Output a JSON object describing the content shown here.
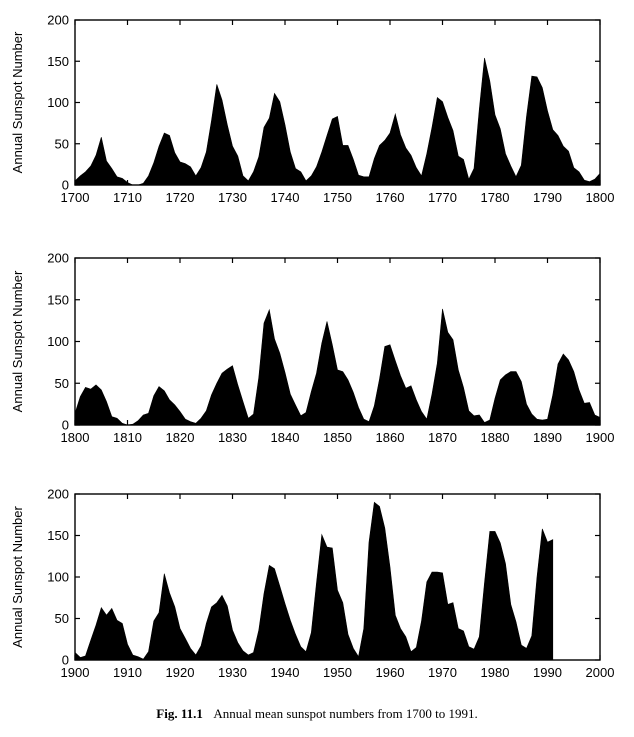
{
  "figure": {
    "caption_label": "Fig. 11.1",
    "caption_text": "Annual mean sunspot numbers from 1700 to 1991."
  },
  "chart_data": [
    {
      "type": "area",
      "title": "",
      "xlabel": "",
      "ylabel": "Annual Sunspot Number",
      "xlim": [
        1700,
        1800
      ],
      "ylim": [
        0,
        200
      ],
      "x_ticks": [
        1700,
        1710,
        1720,
        1730,
        1740,
        1750,
        1760,
        1770,
        1780,
        1790,
        1800
      ],
      "y_ticks": [
        0,
        50,
        100,
        150,
        200
      ],
      "fill_color": "#000000",
      "series": [
        {
          "x": [
            1700,
            1701,
            1702,
            1703,
            1704,
            1705,
            1706,
            1707,
            1708,
            1709,
            1710,
            1711,
            1712,
            1713,
            1714,
            1715,
            1716,
            1717,
            1718,
            1719,
            1720,
            1721,
            1722,
            1723,
            1724,
            1725,
            1726,
            1727,
            1728,
            1729,
            1730,
            1731,
            1732,
            1733,
            1734,
            1735,
            1736,
            1737,
            1738,
            1739,
            1740,
            1741,
            1742,
            1743,
            1744,
            1745,
            1746,
            1747,
            1748,
            1749,
            1750,
            1751,
            1752,
            1753,
            1754,
            1755,
            1756,
            1757,
            1758,
            1759,
            1760,
            1761,
            1762,
            1763,
            1764,
            1765,
            1766,
            1767,
            1768,
            1769,
            1770,
            1771,
            1772,
            1773,
            1774,
            1775,
            1776,
            1777,
            1778,
            1779,
            1780,
            1781,
            1782,
            1783,
            1784,
            1785,
            1786,
            1787,
            1788,
            1789,
            1790,
            1791,
            1792,
            1793,
            1794,
            1795,
            1796,
            1797,
            1798,
            1799,
            1800
          ],
          "values": [
            5,
            11,
            16,
            23,
            36,
            58,
            29,
            20,
            10,
            8,
            3,
            0,
            0,
            2,
            11,
            27,
            47,
            63,
            60,
            39,
            28,
            26,
            22,
            11,
            21,
            40,
            78,
            122,
            103,
            73,
            47,
            35,
            11,
            5,
            16,
            34,
            70,
            81,
            111,
            101,
            73,
            40,
            20,
            16,
            5,
            11,
            22,
            40,
            60,
            80,
            83,
            48,
            48,
            31,
            12,
            10,
            10,
            32,
            48,
            54,
            63,
            86,
            61,
            45,
            36,
            21,
            11,
            38,
            70,
            106,
            101,
            82,
            66,
            35,
            31,
            7,
            20,
            92,
            154,
            126,
            85,
            68,
            38,
            23,
            10,
            24,
            83,
            132,
            131,
            118,
            90,
            67,
            60,
            47,
            41,
            21,
            16,
            6,
            4,
            7,
            14
          ]
        }
      ]
    },
    {
      "type": "area",
      "title": "",
      "xlabel": "",
      "ylabel": "Annual Sunspot Number",
      "xlim": [
        1800,
        1900
      ],
      "ylim": [
        0,
        200
      ],
      "x_ticks": [
        1800,
        1810,
        1820,
        1830,
        1840,
        1850,
        1860,
        1870,
        1880,
        1890,
        1900
      ],
      "y_ticks": [
        0,
        50,
        100,
        150,
        200
      ],
      "fill_color": "#000000",
      "series": [
        {
          "x": [
            1800,
            1801,
            1802,
            1803,
            1804,
            1805,
            1806,
            1807,
            1808,
            1809,
            1810,
            1811,
            1812,
            1813,
            1814,
            1815,
            1816,
            1817,
            1818,
            1819,
            1820,
            1821,
            1822,
            1823,
            1824,
            1825,
            1826,
            1827,
            1828,
            1829,
            1830,
            1831,
            1832,
            1833,
            1834,
            1835,
            1836,
            1837,
            1838,
            1839,
            1840,
            1841,
            1842,
            1843,
            1844,
            1845,
            1846,
            1847,
            1848,
            1849,
            1850,
            1851,
            1852,
            1853,
            1854,
            1855,
            1856,
            1857,
            1858,
            1859,
            1860,
            1861,
            1862,
            1863,
            1864,
            1865,
            1866,
            1867,
            1868,
            1869,
            1870,
            1871,
            1872,
            1873,
            1874,
            1875,
            1876,
            1877,
            1878,
            1879,
            1880,
            1881,
            1882,
            1883,
            1884,
            1885,
            1886,
            1887,
            1888,
            1889,
            1890,
            1891,
            1892,
            1893,
            1894,
            1895,
            1896,
            1897,
            1898,
            1899,
            1900
          ],
          "values": [
            14,
            34,
            45,
            43,
            48,
            42,
            28,
            10,
            8,
            2,
            0,
            1,
            5,
            12,
            14,
            35,
            46,
            41,
            30,
            24,
            16,
            7,
            4,
            2,
            8,
            17,
            36,
            50,
            62,
            67,
            71,
            48,
            28,
            8,
            13,
            57,
            122,
            138,
            103,
            86,
            63,
            37,
            24,
            11,
            15,
            40,
            62,
            98,
            124,
            96,
            66,
            64,
            54,
            39,
            21,
            7,
            4,
            23,
            55,
            94,
            96,
            77,
            59,
            44,
            47,
            30,
            16,
            7,
            37,
            74,
            139,
            111,
            102,
            66,
            45,
            17,
            11,
            12,
            3,
            6,
            32,
            54,
            60,
            64,
            64,
            52,
            25,
            13,
            7,
            6,
            7,
            36,
            73,
            85,
            78,
            64,
            42,
            26,
            27,
            12,
            9
          ]
        }
      ]
    },
    {
      "type": "area",
      "title": "",
      "xlabel": "",
      "ylabel": "Annual Sunspot Number",
      "xlim": [
        1900,
        2000
      ],
      "ylim": [
        0,
        200
      ],
      "x_ticks": [
        1900,
        1910,
        1920,
        1930,
        1940,
        1950,
        1960,
        1970,
        1980,
        1990,
        2000
      ],
      "y_ticks": [
        0,
        50,
        100,
        150,
        200
      ],
      "fill_color": "#000000",
      "series": [
        {
          "x": [
            1900,
            1901,
            1902,
            1903,
            1904,
            1905,
            1906,
            1907,
            1908,
            1909,
            1910,
            1911,
            1912,
            1913,
            1914,
            1915,
            1916,
            1917,
            1918,
            1919,
            1920,
            1921,
            1922,
            1923,
            1924,
            1925,
            1926,
            1927,
            1928,
            1929,
            1930,
            1931,
            1932,
            1933,
            1934,
            1935,
            1936,
            1937,
            1938,
            1939,
            1940,
            1941,
            1942,
            1943,
            1944,
            1945,
            1946,
            1947,
            1948,
            1949,
            1950,
            1951,
            1952,
            1953,
            1954,
            1955,
            1956,
            1957,
            1958,
            1959,
            1960,
            1961,
            1962,
            1963,
            1964,
            1965,
            1966,
            1967,
            1968,
            1969,
            1970,
            1971,
            1972,
            1973,
            1974,
            1975,
            1976,
            1977,
            1978,
            1979,
            1980,
            1981,
            1982,
            1983,
            1984,
            1985,
            1986,
            1987,
            1988,
            1989,
            1990,
            1991
          ],
          "values": [
            9,
            3,
            5,
            24,
            42,
            63,
            54,
            62,
            48,
            44,
            19,
            6,
            4,
            1,
            10,
            47,
            57,
            104,
            81,
            64,
            38,
            26,
            14,
            6,
            17,
            44,
            64,
            69,
            78,
            65,
            36,
            21,
            11,
            6,
            9,
            36,
            80,
            114,
            110,
            89,
            68,
            48,
            31,
            16,
            10,
            33,
            93,
            151,
            136,
            135,
            84,
            69,
            31,
            14,
            4,
            38,
            142,
            190,
            185,
            159,
            112,
            54,
            38,
            28,
            10,
            15,
            47,
            94,
            106,
            106,
            105,
            67,
            69,
            38,
            35,
            16,
            13,
            28,
            93,
            155,
            155,
            141,
            116,
            67,
            46,
            18,
            14,
            29,
            100,
            158,
            142,
            145
          ]
        }
      ]
    }
  ]
}
